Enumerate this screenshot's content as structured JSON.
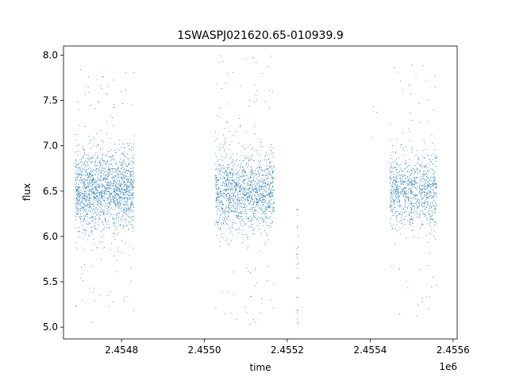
{
  "chart_data": {
    "type": "scatter",
    "title": "1SWASPJ021620.65-010939.9",
    "xlabel": "time",
    "ylabel": "flux",
    "x_offset_label": "1e6",
    "xlim": [
      2454660,
      2455610
    ],
    "ylim": [
      4.87,
      8.1
    ],
    "xticks": [
      2454800,
      2455000,
      2455200,
      2455400,
      2455600
    ],
    "xtick_labels": [
      "2.4548",
      "2.4550",
      "2.4552",
      "2.4554",
      "2.4556"
    ],
    "yticks": [
      5.0,
      5.5,
      6.0,
      6.5,
      7.0,
      7.5,
      8.0
    ],
    "ytick_labels": [
      "5.0",
      "5.5",
      "6.0",
      "6.5",
      "7.0",
      "7.5",
      "8.0"
    ],
    "grid": false,
    "marker_color": "#1f77b4",
    "clusters": [
      {
        "x_range": [
          2454688,
          2454830
        ],
        "y_center": 6.5,
        "y_spread": 0.22,
        "y_min": 5.0,
        "y_max": 7.85,
        "points": 1800
      },
      {
        "x_range": [
          2455026,
          2455168
        ],
        "y_center": 6.5,
        "y_spread": 0.2,
        "y_min": 5.0,
        "y_max": 8.0,
        "points": 1500
      },
      {
        "x_range": [
          2455222,
          2455226
        ],
        "y_center": 5.6,
        "y_spread": 0.6,
        "y_min": 5.05,
        "y_max": 6.3,
        "points": 30
      },
      {
        "x_range": [
          2455405,
          2455416
        ],
        "y_center": 7.35,
        "y_spread": 0.1,
        "y_min": 6.7,
        "y_max": 7.45,
        "points": 3
      },
      {
        "x_range": [
          2455446,
          2455560
        ],
        "y_center": 6.5,
        "y_spread": 0.2,
        "y_min": 5.1,
        "y_max": 7.98,
        "points": 1000
      }
    ]
  }
}
